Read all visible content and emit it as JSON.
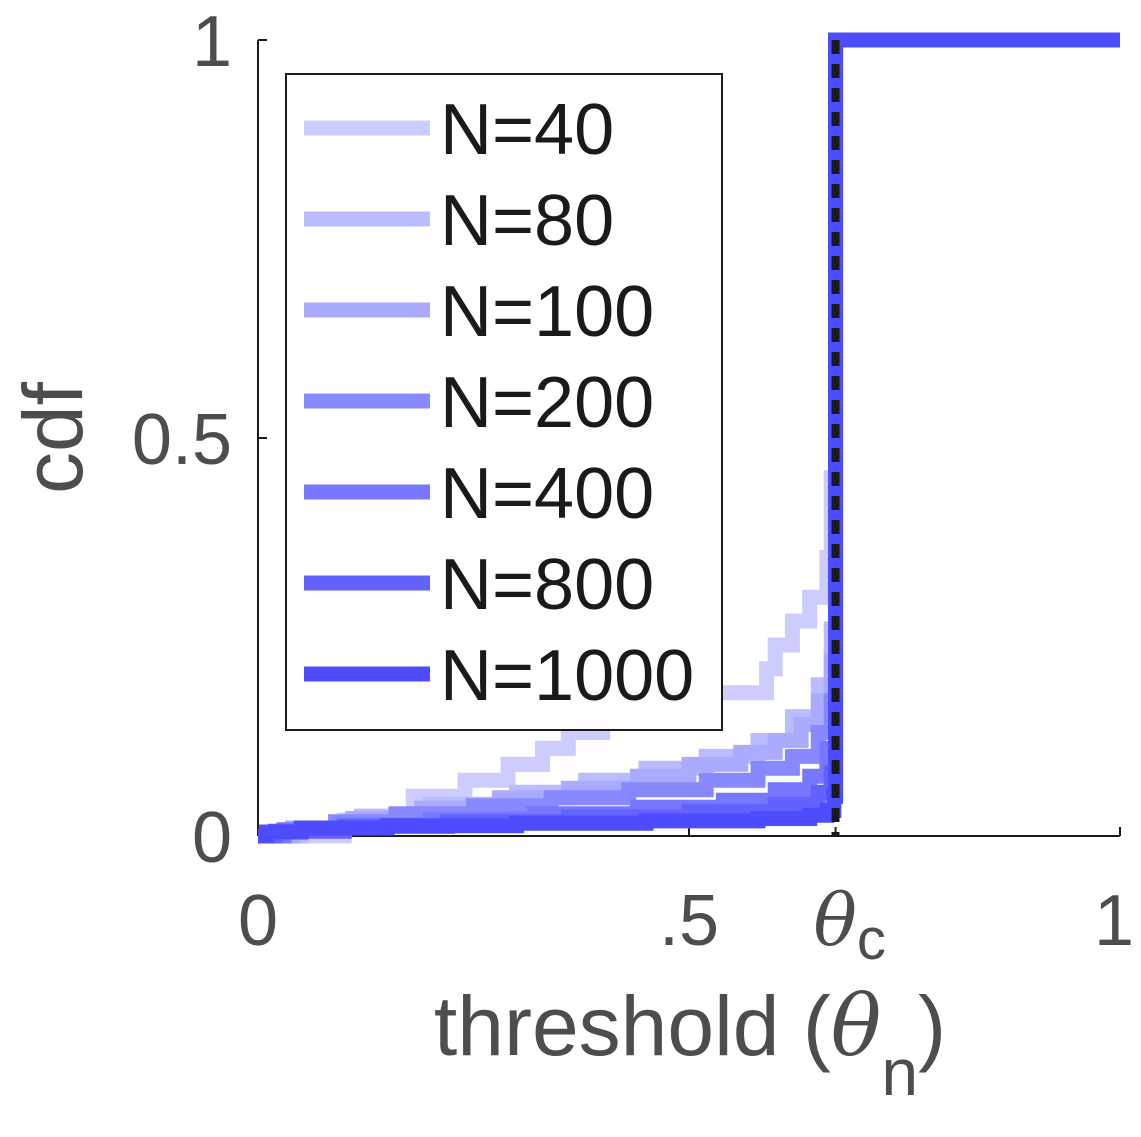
{
  "chart_data": {
    "type": "line",
    "xlabel_main": "threshold (",
    "xlabel_symbol": "θ",
    "xlabel_subscript": "n",
    "xlabel_close": ")",
    "ylabel": "cdf",
    "xlim": [
      0,
      1
    ],
    "ylim": [
      0,
      1
    ],
    "grid": false,
    "legend_position": "top-left",
    "x_ticks": [
      {
        "value": 0,
        "label": "0"
      },
      {
        "value": 0.5,
        "label": ".5"
      },
      {
        "value": 0.67,
        "label": "θ",
        "subscript": "c"
      },
      {
        "value": 1,
        "label": "1"
      }
    ],
    "y_ticks": [
      {
        "value": 0,
        "label": "0"
      },
      {
        "value": 0.5,
        "label": "0.5"
      },
      {
        "value": 1,
        "label": "1"
      }
    ],
    "critical_threshold": 0.67,
    "series": [
      {
        "name": "N=40",
        "color": "#ccccff",
        "x": [
          0.0,
          0.1,
          0.1,
          0.18,
          0.18,
          0.24,
          0.24,
          0.29,
          0.29,
          0.33,
          0.33,
          0.36,
          0.36,
          0.4,
          0.4,
          0.46,
          0.46,
          0.59,
          0.59,
          0.6,
          0.6,
          0.62,
          0.62,
          0.64,
          0.64,
          0.66,
          0.66,
          0.665,
          0.665,
          0.67,
          0.67,
          1.0
        ],
        "y": [
          0.0,
          0.0,
          0.02,
          0.02,
          0.05,
          0.05,
          0.07,
          0.07,
          0.09,
          0.09,
          0.11,
          0.11,
          0.13,
          0.13,
          0.15,
          0.15,
          0.18,
          0.18,
          0.21,
          0.21,
          0.24,
          0.24,
          0.27,
          0.27,
          0.3,
          0.3,
          0.35,
          0.35,
          0.45,
          0.45,
          1.0,
          1.0
        ]
      },
      {
        "name": "N=80",
        "color": "#bbbbff",
        "x": [
          0.0,
          0.05,
          0.05,
          0.12,
          0.12,
          0.2,
          0.2,
          0.3,
          0.3,
          0.38,
          0.38,
          0.45,
          0.45,
          0.52,
          0.52,
          0.58,
          0.58,
          0.62,
          0.62,
          0.65,
          0.65,
          0.665,
          0.665,
          0.67,
          0.67,
          1.0
        ],
        "y": [
          0.0,
          0.0,
          0.01,
          0.01,
          0.025,
          0.025,
          0.04,
          0.04,
          0.055,
          0.055,
          0.07,
          0.07,
          0.085,
          0.085,
          0.1,
          0.1,
          0.12,
          0.12,
          0.15,
          0.15,
          0.19,
          0.19,
          0.26,
          0.26,
          1.0,
          1.0
        ]
      },
      {
        "name": "N=100",
        "color": "#aaaaff",
        "x": [
          0.0,
          0.04,
          0.04,
          0.11,
          0.11,
          0.19,
          0.19,
          0.28,
          0.28,
          0.36,
          0.36,
          0.44,
          0.44,
          0.5,
          0.5,
          0.56,
          0.56,
          0.6,
          0.6,
          0.63,
          0.63,
          0.65,
          0.65,
          0.665,
          0.665,
          0.67,
          0.67,
          1.0
        ],
        "y": [
          0.0,
          0.0,
          0.01,
          0.01,
          0.022,
          0.022,
          0.035,
          0.035,
          0.048,
          0.048,
          0.06,
          0.06,
          0.075,
          0.075,
          0.09,
          0.09,
          0.105,
          0.105,
          0.12,
          0.12,
          0.14,
          0.14,
          0.17,
          0.17,
          0.22,
          0.22,
          1.0,
          1.0
        ]
      },
      {
        "name": "N=200",
        "color": "#8888ff",
        "x": [
          0.0,
          0.03,
          0.03,
          0.09,
          0.09,
          0.16,
          0.16,
          0.25,
          0.25,
          0.34,
          0.34,
          0.43,
          0.43,
          0.52,
          0.52,
          0.58,
          0.58,
          0.62,
          0.62,
          0.65,
          0.65,
          0.665,
          0.665,
          0.67,
          0.67,
          1.0
        ],
        "y": [
          0.0,
          0.0,
          0.008,
          0.008,
          0.018,
          0.018,
          0.028,
          0.028,
          0.038,
          0.038,
          0.048,
          0.048,
          0.058,
          0.058,
          0.07,
          0.07,
          0.085,
          0.085,
          0.1,
          0.1,
          0.13,
          0.13,
          0.17,
          0.17,
          1.0,
          1.0
        ]
      },
      {
        "name": "N=400",
        "color": "#7777ff",
        "x": [
          0.0,
          0.03,
          0.03,
          0.1,
          0.1,
          0.2,
          0.2,
          0.32,
          0.32,
          0.44,
          0.44,
          0.54,
          0.54,
          0.6,
          0.6,
          0.64,
          0.64,
          0.66,
          0.66,
          0.67,
          0.67,
          1.0
        ],
        "y": [
          0.0,
          0.0,
          0.007,
          0.007,
          0.014,
          0.014,
          0.021,
          0.021,
          0.028,
          0.028,
          0.036,
          0.036,
          0.045,
          0.045,
          0.058,
          0.058,
          0.075,
          0.075,
          0.11,
          0.11,
          1.0,
          1.0
        ]
      },
      {
        "name": "N=800",
        "color": "#6262ff",
        "x": [
          0.0,
          0.02,
          0.02,
          0.1,
          0.1,
          0.22,
          0.22,
          0.36,
          0.36,
          0.5,
          0.5,
          0.6,
          0.6,
          0.65,
          0.65,
          0.665,
          0.665,
          0.67,
          0.67,
          1.0
        ],
        "y": [
          0.0,
          0.0,
          0.006,
          0.006,
          0.012,
          0.012,
          0.018,
          0.018,
          0.024,
          0.024,
          0.031,
          0.031,
          0.04,
          0.04,
          0.055,
          0.055,
          0.08,
          0.08,
          1.0,
          1.0
        ]
      },
      {
        "name": "N=1000",
        "color": "#4d4dff",
        "x": [
          0.0,
          0.01,
          0.01,
          0.05,
          0.05,
          0.15,
          0.15,
          0.3,
          0.3,
          0.45,
          0.45,
          0.58,
          0.58,
          0.64,
          0.64,
          0.66,
          0.66,
          0.668,
          0.668,
          0.67,
          0.67,
          1.0
        ],
        "y": [
          0.0,
          0.0,
          0.005,
          0.005,
          0.01,
          0.01,
          0.013,
          0.013,
          0.016,
          0.016,
          0.019,
          0.019,
          0.022,
          0.022,
          0.026,
          0.026,
          0.032,
          0.032,
          0.05,
          0.05,
          1.0,
          1.0
        ]
      }
    ]
  }
}
